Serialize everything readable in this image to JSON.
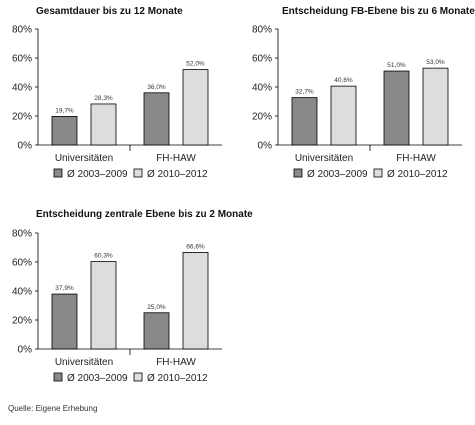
{
  "source": "Quelle: Eigene Erhebung",
  "chart_data": [
    {
      "type": "bar",
      "title": "Gesamtdauer bis zu 12 Monate",
      "categories": [
        "Universitäten",
        "FH-HAW"
      ],
      "series": [
        {
          "name": "Ø 2003–2009",
          "color": "#888888",
          "values": [
            19.7,
            36.0
          ],
          "labels": [
            "19,7%",
            "36,0%"
          ]
        },
        {
          "name": "Ø 2010–2012",
          "color": "#dddddd",
          "values": [
            28.3,
            52.0
          ],
          "labels": [
            "28,3%",
            "52,0%"
          ]
        }
      ],
      "yticks": [
        "0%",
        "20%",
        "40%",
        "60%",
        "80%"
      ],
      "ylim": [
        0,
        80
      ],
      "grid": false,
      "legend": "bottom"
    },
    {
      "type": "bar",
      "title": "Entscheidung FB-Ebene bis zu 6 Monate",
      "categories": [
        "Universitäten",
        "FH-HAW"
      ],
      "series": [
        {
          "name": "Ø 2003–2009",
          "color": "#888888",
          "values": [
            32.7,
            51.0
          ],
          "labels": [
            "32,7%",
            "51,0%"
          ]
        },
        {
          "name": "Ø 2010–2012",
          "color": "#dddddd",
          "values": [
            40.6,
            53.0
          ],
          "labels": [
            "40,6%",
            "53,0%"
          ]
        }
      ],
      "yticks": [
        "0%",
        "20%",
        "40%",
        "60%",
        "80%"
      ],
      "ylim": [
        0,
        80
      ],
      "grid": false,
      "legend": "bottom"
    },
    {
      "type": "bar",
      "title": "Entscheidung zentrale Ebene bis zu 2 Monate",
      "categories": [
        "Universitäten",
        "FH-HAW"
      ],
      "series": [
        {
          "name": "Ø 2003–2009",
          "color": "#888888",
          "values": [
            37.9,
            25.0
          ],
          "labels": [
            "37,9%",
            "25,0%"
          ]
        },
        {
          "name": "Ø 2010–2012",
          "color": "#dddddd",
          "values": [
            60.3,
            66.6
          ],
          "labels": [
            "60,3%",
            "66,6%"
          ]
        }
      ],
      "yticks": [
        "0%",
        "20%",
        "40%",
        "60%",
        "80%"
      ],
      "ylim": [
        0,
        80
      ],
      "grid": false,
      "legend": "bottom"
    }
  ]
}
